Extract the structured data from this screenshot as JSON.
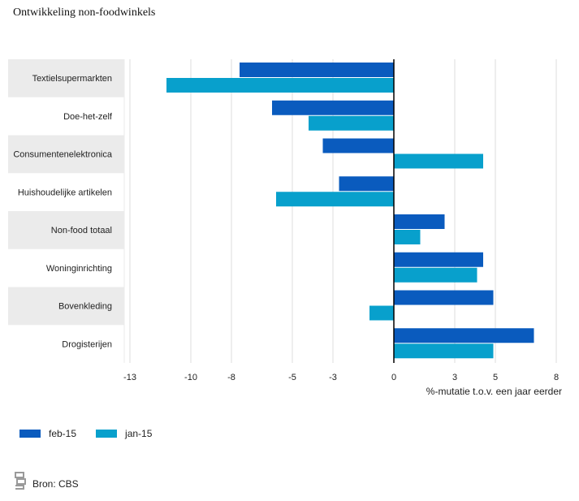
{
  "colors": {
    "feb": "#0a5bbe",
    "jan": "#08a0cc",
    "band": "#ebebeb",
    "grid": "#dddddd",
    "axis": "#000000"
  },
  "footer": {
    "source": "Bron: CBS"
  },
  "chart_data": {
    "type": "bar",
    "orientation": "horizontal",
    "title": "Ontwikkeling non-foodwinkels",
    "xlabel": "%-mutatie t.o.v. een jaar eerder",
    "ylabel": "",
    "xlim": [
      -13,
      8
    ],
    "xticks": [
      -13,
      -10,
      -8,
      -5,
      -3,
      0,
      3,
      5,
      8
    ],
    "grid": true,
    "legend_position": "bottom-left",
    "categories": [
      "Textielsupermarkten",
      "Doe-het-zelf",
      "Consumentenelektronica",
      "Huishoudelijke artikelen",
      "Non-food totaal",
      "Woninginrichting",
      "Bovenkleding",
      "Drogisterijen"
    ],
    "series": [
      {
        "name": "feb-15",
        "color": "#0a5bbe",
        "values": [
          -7.6,
          -6.0,
          -3.5,
          -2.7,
          2.5,
          4.4,
          4.9,
          6.9
        ]
      },
      {
        "name": "jan-15",
        "color": "#08a0cc",
        "values": [
          -11.2,
          -4.2,
          4.4,
          -5.8,
          1.3,
          4.1,
          -1.2,
          4.9
        ]
      }
    ]
  }
}
